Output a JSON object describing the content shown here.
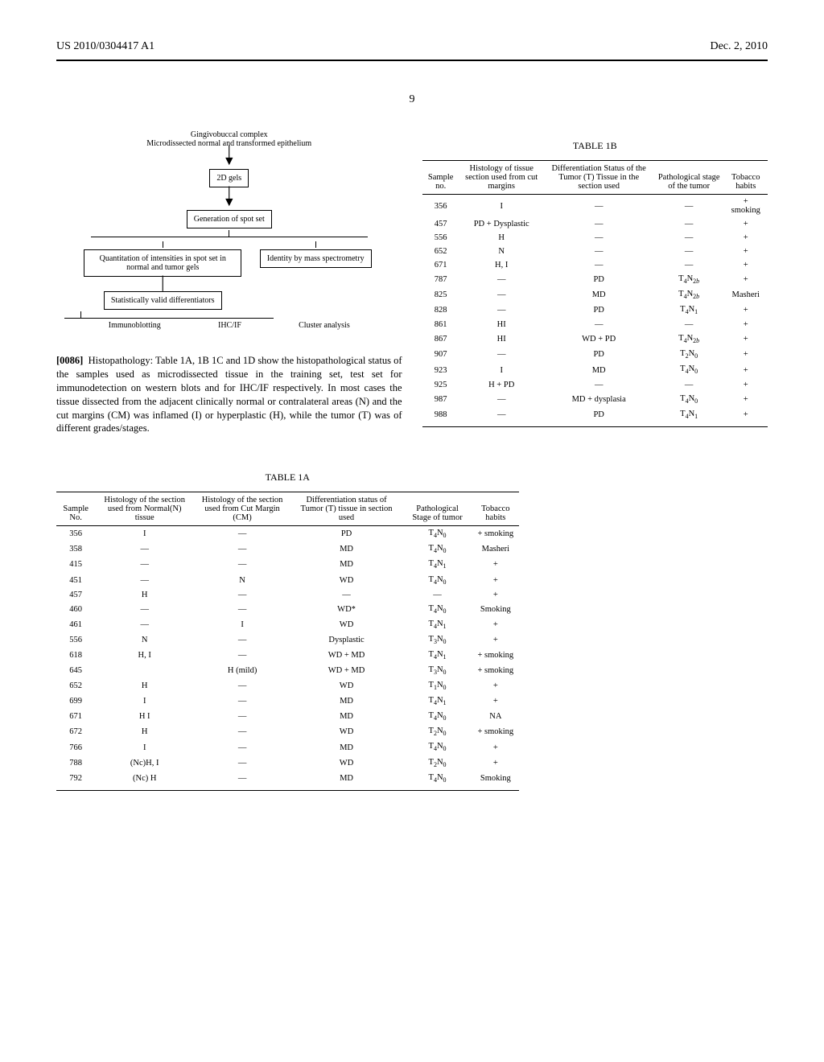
{
  "header": {
    "left": "US 2010/0304417 A1",
    "right": "Dec. 2, 2010"
  },
  "page_number": "9",
  "flowchart": {
    "title1": "Gingivobuccal complex",
    "title2": "Microdissected normal and transformed epithelium",
    "step_2d": "2D gels",
    "step_spotset": "Generation of spot set",
    "branch_left": "Quantitation of intensities in spot set in normal and tumor gels",
    "branch_right": "Identity by mass spectrometry",
    "step_diff": "Statistically valid differentiators",
    "end_a": "Immunoblotting",
    "end_b": "IHC/IF",
    "end_c": "Cluster analysis"
  },
  "paragraph": {
    "num": "[0086]",
    "text": "Histopathology: Table 1A, 1B 1C and 1D show the histopathological status of the samples used as microdissected tissue in the training set, test set for immunodetection on western blots and for IHC/IF respectively. In most cases the tissue dissected from the adjacent clinically normal or contralateral areas (N) and the cut margins (CM) was inflamed (I) or hyperplastic (H), while the tumor (T) was of different grades/stages."
  },
  "table_1b": {
    "caption": "TABLE 1B",
    "columns": [
      "Sample no.",
      "Histology of tissue section used from cut margins",
      "Differentiation Status of the Tumor (T) Tissue in the section used",
      "Pathological stage of the tumor",
      "Tobacco habits"
    ],
    "rows": [
      [
        "356",
        "I",
        "—",
        "—",
        "+ smoking"
      ],
      [
        "457",
        "PD + Dysplastic",
        "—",
        "—",
        "+"
      ],
      [
        "556",
        "H",
        "—",
        "—",
        "+"
      ],
      [
        "652",
        "N",
        "—",
        "—",
        "+"
      ],
      [
        "671",
        "H, I",
        "—",
        "—",
        "+"
      ],
      [
        "787",
        "—",
        "PD",
        "T₄N₂ᵦ",
        "+"
      ],
      [
        "825",
        "—",
        "MD",
        "T₄N₂ᵦ",
        "Masheri"
      ],
      [
        "828",
        "—",
        "PD",
        "T₄N₁",
        "+"
      ],
      [
        "861",
        "HI",
        "—",
        "—",
        "+"
      ],
      [
        "867",
        "HI",
        "WD + PD",
        "T₄N₂ᵦ",
        "+"
      ],
      [
        "907",
        "—",
        "PD",
        "T₂N₀",
        "+"
      ],
      [
        "923",
        "I",
        "MD",
        "T₄N₀",
        "+"
      ],
      [
        "925",
        "H + PD",
        "—",
        "—",
        "+"
      ],
      [
        "987",
        "—",
        "MD + dysplasia",
        "T₄N₀",
        "+"
      ],
      [
        "988",
        "—",
        "PD",
        "T₄N₁",
        "+"
      ]
    ]
  },
  "table_1a": {
    "caption": "TABLE 1A",
    "columns": [
      "Sample No.",
      "Histology of the section used from Normal(N) tissue",
      "Histology of the section used from Cut Margin (CM)",
      "Differentiation status of Tumor (T) tissue in section used",
      "Pathological Stage of tumor",
      "Tobacco habits"
    ],
    "rows": [
      [
        "356",
        "I",
        "—",
        "PD",
        "T₄N₀",
        "+ smoking"
      ],
      [
        "358",
        "—",
        "—",
        "MD",
        "T₄N₀",
        "Masheri"
      ],
      [
        "415",
        "—",
        "—",
        "MD",
        "T₄N₁",
        "+"
      ],
      [
        "451",
        "—",
        "N",
        "WD",
        "T₄N₀",
        "+"
      ],
      [
        "457",
        "H",
        "—",
        "—",
        "—",
        "+"
      ],
      [
        "460",
        "—",
        "—",
        "WD*",
        "T₄N₀",
        "Smoking"
      ],
      [
        "461",
        "—",
        "I",
        "WD",
        "T₄N₁",
        "+"
      ],
      [
        "556",
        "N",
        "—",
        "Dysplastic",
        "T₃N₀",
        "+"
      ],
      [
        "618",
        "H, I",
        "—",
        "WD + MD",
        "T₄N₁",
        "+ smoking"
      ],
      [
        "645",
        "",
        "H (mild)",
        "WD + MD",
        "T₃N₀",
        "+ smoking"
      ],
      [
        "652",
        "H",
        "—",
        "WD",
        "T₁N₀",
        "+"
      ],
      [
        "699",
        "I",
        "—",
        "MD",
        "T₄N₁",
        "+"
      ],
      [
        "671",
        "H I",
        "—",
        "MD",
        "T₄N₀",
        "NA"
      ],
      [
        "672",
        "H",
        "—",
        "WD",
        "T₂N₀",
        "+ smoking"
      ],
      [
        "766",
        "I",
        "—",
        "MD",
        "T₄N₀",
        "+"
      ],
      [
        "788",
        "(Nc)H, I",
        "—",
        "WD",
        "T₂N₀",
        "+"
      ],
      [
        "792",
        "(Nc) H",
        "—",
        "MD",
        "T₄N₀",
        "Smoking"
      ]
    ]
  }
}
